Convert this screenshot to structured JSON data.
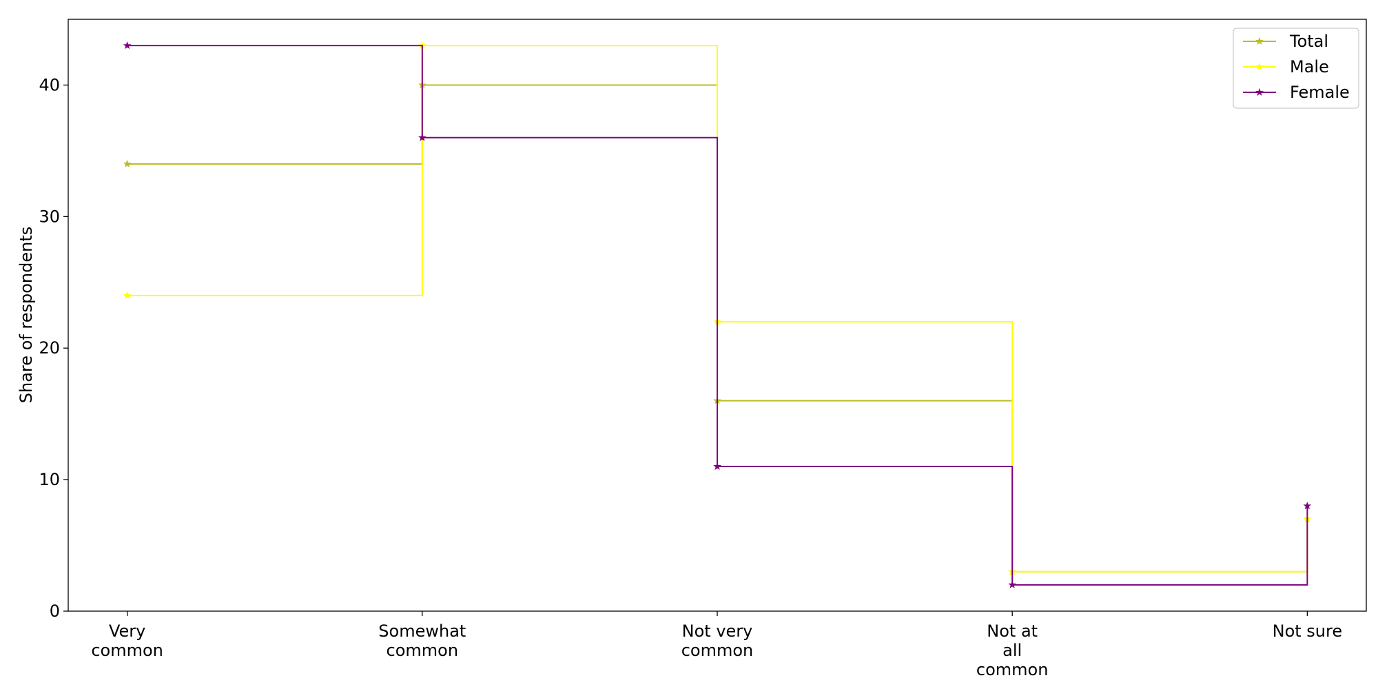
{
  "chart_data": {
    "type": "line",
    "step": "post",
    "categories": [
      "Very\ncommon",
      "Somewhat\ncommon",
      "Not very\ncommon",
      "Not at\nall\ncommon",
      "Not sure"
    ],
    "series": [
      {
        "name": "Total",
        "color": "#bcbd22",
        "values": [
          34,
          40,
          16,
          3,
          7
        ]
      },
      {
        "name": "Male",
        "color": "#ffff00",
        "values": [
          24,
          43,
          22,
          3,
          7
        ]
      },
      {
        "name": "Female",
        "color": "#800080",
        "values": [
          43,
          36,
          11,
          2,
          8
        ]
      }
    ],
    "ylabel": "Share of respondents",
    "ylim": [
      0,
      45
    ],
    "yticks": [
      0,
      10,
      20,
      30,
      40
    ],
    "legend": "upper right",
    "grid": false,
    "marker": "star"
  }
}
